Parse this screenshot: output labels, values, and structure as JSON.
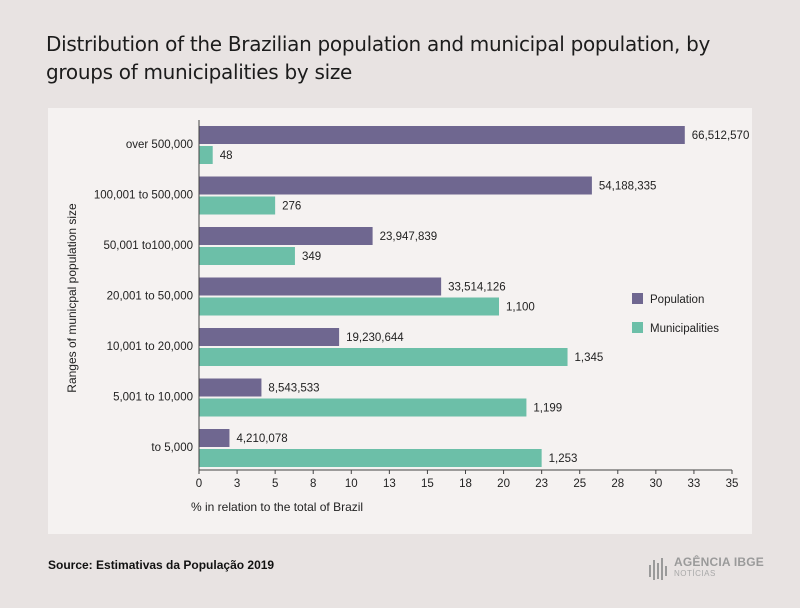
{
  "title": "Distribution of the Brazilian population and municipal population, by groups of municipalities by size",
  "source": "Source: Estimativas da População 2019",
  "logo": {
    "brand": "AGÊNCIA IBGE",
    "sub": "NOTÍCIAS"
  },
  "colors": {
    "population": "#6f6790",
    "municipalities": "#6cbfa8",
    "background": "#e8e3e2",
    "plot_background": "#f5f2f1"
  },
  "chart_data": {
    "type": "bar",
    "orientation": "horizontal",
    "categories": [
      "over 500,000",
      "100,001 to 500,000",
      "50,001 to100,000",
      "20,001 to 50,000",
      "10,001 to 20,000",
      "5,001 to 10,000",
      "to 5,000"
    ],
    "series": [
      {
        "name": "Population",
        "values": [
          31.9,
          25.8,
          11.4,
          15.9,
          9.2,
          4.1,
          2.0
        ],
        "labels": [
          "66,512,570",
          "54,188,335",
          "23,947,839",
          "33,514,126",
          "19,230,644",
          "8,543,533",
          "4,210,078"
        ]
      },
      {
        "name": "Municipalities",
        "values": [
          0.9,
          5.0,
          6.3,
          19.7,
          24.2,
          21.5,
          22.5
        ],
        "labels": [
          "48",
          "276",
          "349",
          "1,100",
          "1,345",
          "1,199",
          "1,253"
        ]
      }
    ],
    "xticks": [
      "0",
      "3",
      "5",
      "8",
      "10",
      "13",
      "15",
      "18",
      "20",
      "23",
      "25",
      "28",
      "30",
      "33",
      "35"
    ],
    "xlim": [
      0,
      35
    ],
    "xlabel": "% in relation to the total of Brazil",
    "ylabel": "Ranges of municpal population size",
    "legend_position": "right",
    "grid": false
  }
}
